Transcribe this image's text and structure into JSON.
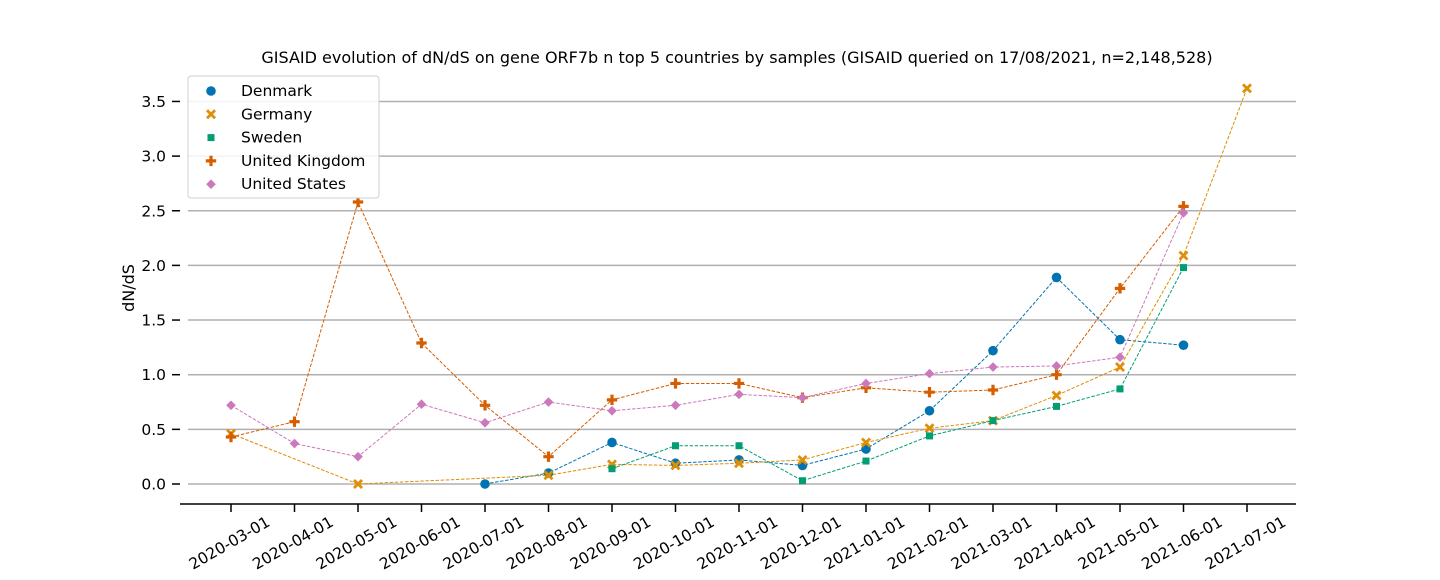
{
  "chart_data": {
    "type": "line",
    "title": "GISAID evolution of dN/dS on gene ORF7b n top 5 countries by samples (GISAID queried on 17/08/2021, n=2,148,528)",
    "xlabel": "",
    "ylabel": "dN/dS",
    "ylim": [
      -0.18,
      3.75
    ],
    "yticks": [
      "0.0",
      "0.5",
      "1.0",
      "1.5",
      "2.0",
      "2.5",
      "3.0",
      "3.5"
    ],
    "grid": "horizontal",
    "legend_position": "top-left",
    "categories": [
      "2020-03-01",
      "2020-04-01",
      "2020-05-01",
      "2020-06-01",
      "2020-07-01",
      "2020-08-01",
      "2020-09-01",
      "2020-10-01",
      "2020-11-01",
      "2020-12-01",
      "2021-01-01",
      "2021-02-01",
      "2021-03-01",
      "2021-04-01",
      "2021-05-01",
      "2021-06-01",
      "2021-07-01"
    ],
    "series": [
      {
        "name": "Denmark",
        "color": "#0173b2",
        "marker": "circle",
        "values": [
          null,
          null,
          null,
          null,
          0.0,
          0.1,
          0.38,
          0.19,
          0.22,
          0.17,
          0.32,
          0.67,
          1.22,
          1.89,
          1.32,
          1.27,
          null
        ]
      },
      {
        "name": "Germany",
        "color": "#de8f05",
        "marker": "x",
        "values": [
          0.46,
          null,
          0.0,
          null,
          null,
          0.08,
          0.18,
          0.17,
          0.19,
          0.22,
          0.38,
          0.51,
          0.58,
          0.81,
          1.07,
          2.09,
          3.62
        ]
      },
      {
        "name": "Sweden",
        "color": "#029e73",
        "marker": "square",
        "values": [
          null,
          null,
          null,
          null,
          null,
          null,
          0.14,
          0.35,
          0.35,
          0.03,
          0.21,
          0.44,
          0.58,
          0.71,
          0.87,
          1.98,
          null
        ]
      },
      {
        "name": "United Kingdom",
        "color": "#d55e00",
        "marker": "plus",
        "values": [
          0.43,
          0.57,
          2.58,
          1.29,
          0.72,
          0.25,
          0.77,
          0.92,
          0.92,
          0.79,
          0.88,
          0.84,
          0.86,
          1.0,
          1.79,
          2.54,
          null
        ]
      },
      {
        "name": "United States",
        "color": "#cc78bc",
        "marker": "diamond",
        "values": [
          0.72,
          0.37,
          0.25,
          0.73,
          0.56,
          0.75,
          0.67,
          0.72,
          0.82,
          0.79,
          0.92,
          1.01,
          1.07,
          1.08,
          1.16,
          2.48,
          null
        ]
      }
    ]
  }
}
